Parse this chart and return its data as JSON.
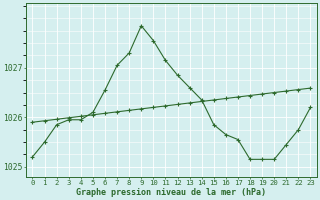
{
  "xlabel": "Graphe pression niveau de la mer (hPa)",
  "hours": [
    0,
    1,
    2,
    3,
    4,
    5,
    6,
    7,
    8,
    9,
    10,
    11,
    12,
    13,
    14,
    15,
    16,
    17,
    18,
    19,
    20,
    21,
    22,
    23
  ],
  "line1": [
    1025.2,
    1025.5,
    1025.85,
    1025.95,
    1025.95,
    1026.1,
    1026.55,
    1027.05,
    1027.3,
    1027.85,
    1027.55,
    1027.15,
    1026.85,
    1026.6,
    1026.35,
    1025.85,
    1025.65,
    1025.55,
    1025.15,
    1025.15,
    1025.15,
    1025.45,
    1025.75,
    1026.2
  ],
  "line2": [
    1025.9,
    1025.93,
    1025.96,
    1025.99,
    1026.02,
    1026.05,
    1026.08,
    1026.11,
    1026.14,
    1026.17,
    1026.2,
    1026.23,
    1026.26,
    1026.29,
    1026.32,
    1026.35,
    1026.38,
    1026.41,
    1026.44,
    1026.47,
    1026.5,
    1026.53,
    1026.56,
    1026.59
  ],
  "line_color": "#2d6a2d",
  "bg_color": "#d5efef",
  "grid_color": "#ffffff",
  "ylim_min": 1024.8,
  "ylim_max": 1028.3,
  "yticks": [
    1025,
    1026,
    1027
  ],
  "xlim_min": -0.5,
  "xlim_max": 23.5,
  "xlabel_fontsize": 6.0,
  "tick_fontsize": 5.2,
  "ytick_fontsize": 5.8
}
